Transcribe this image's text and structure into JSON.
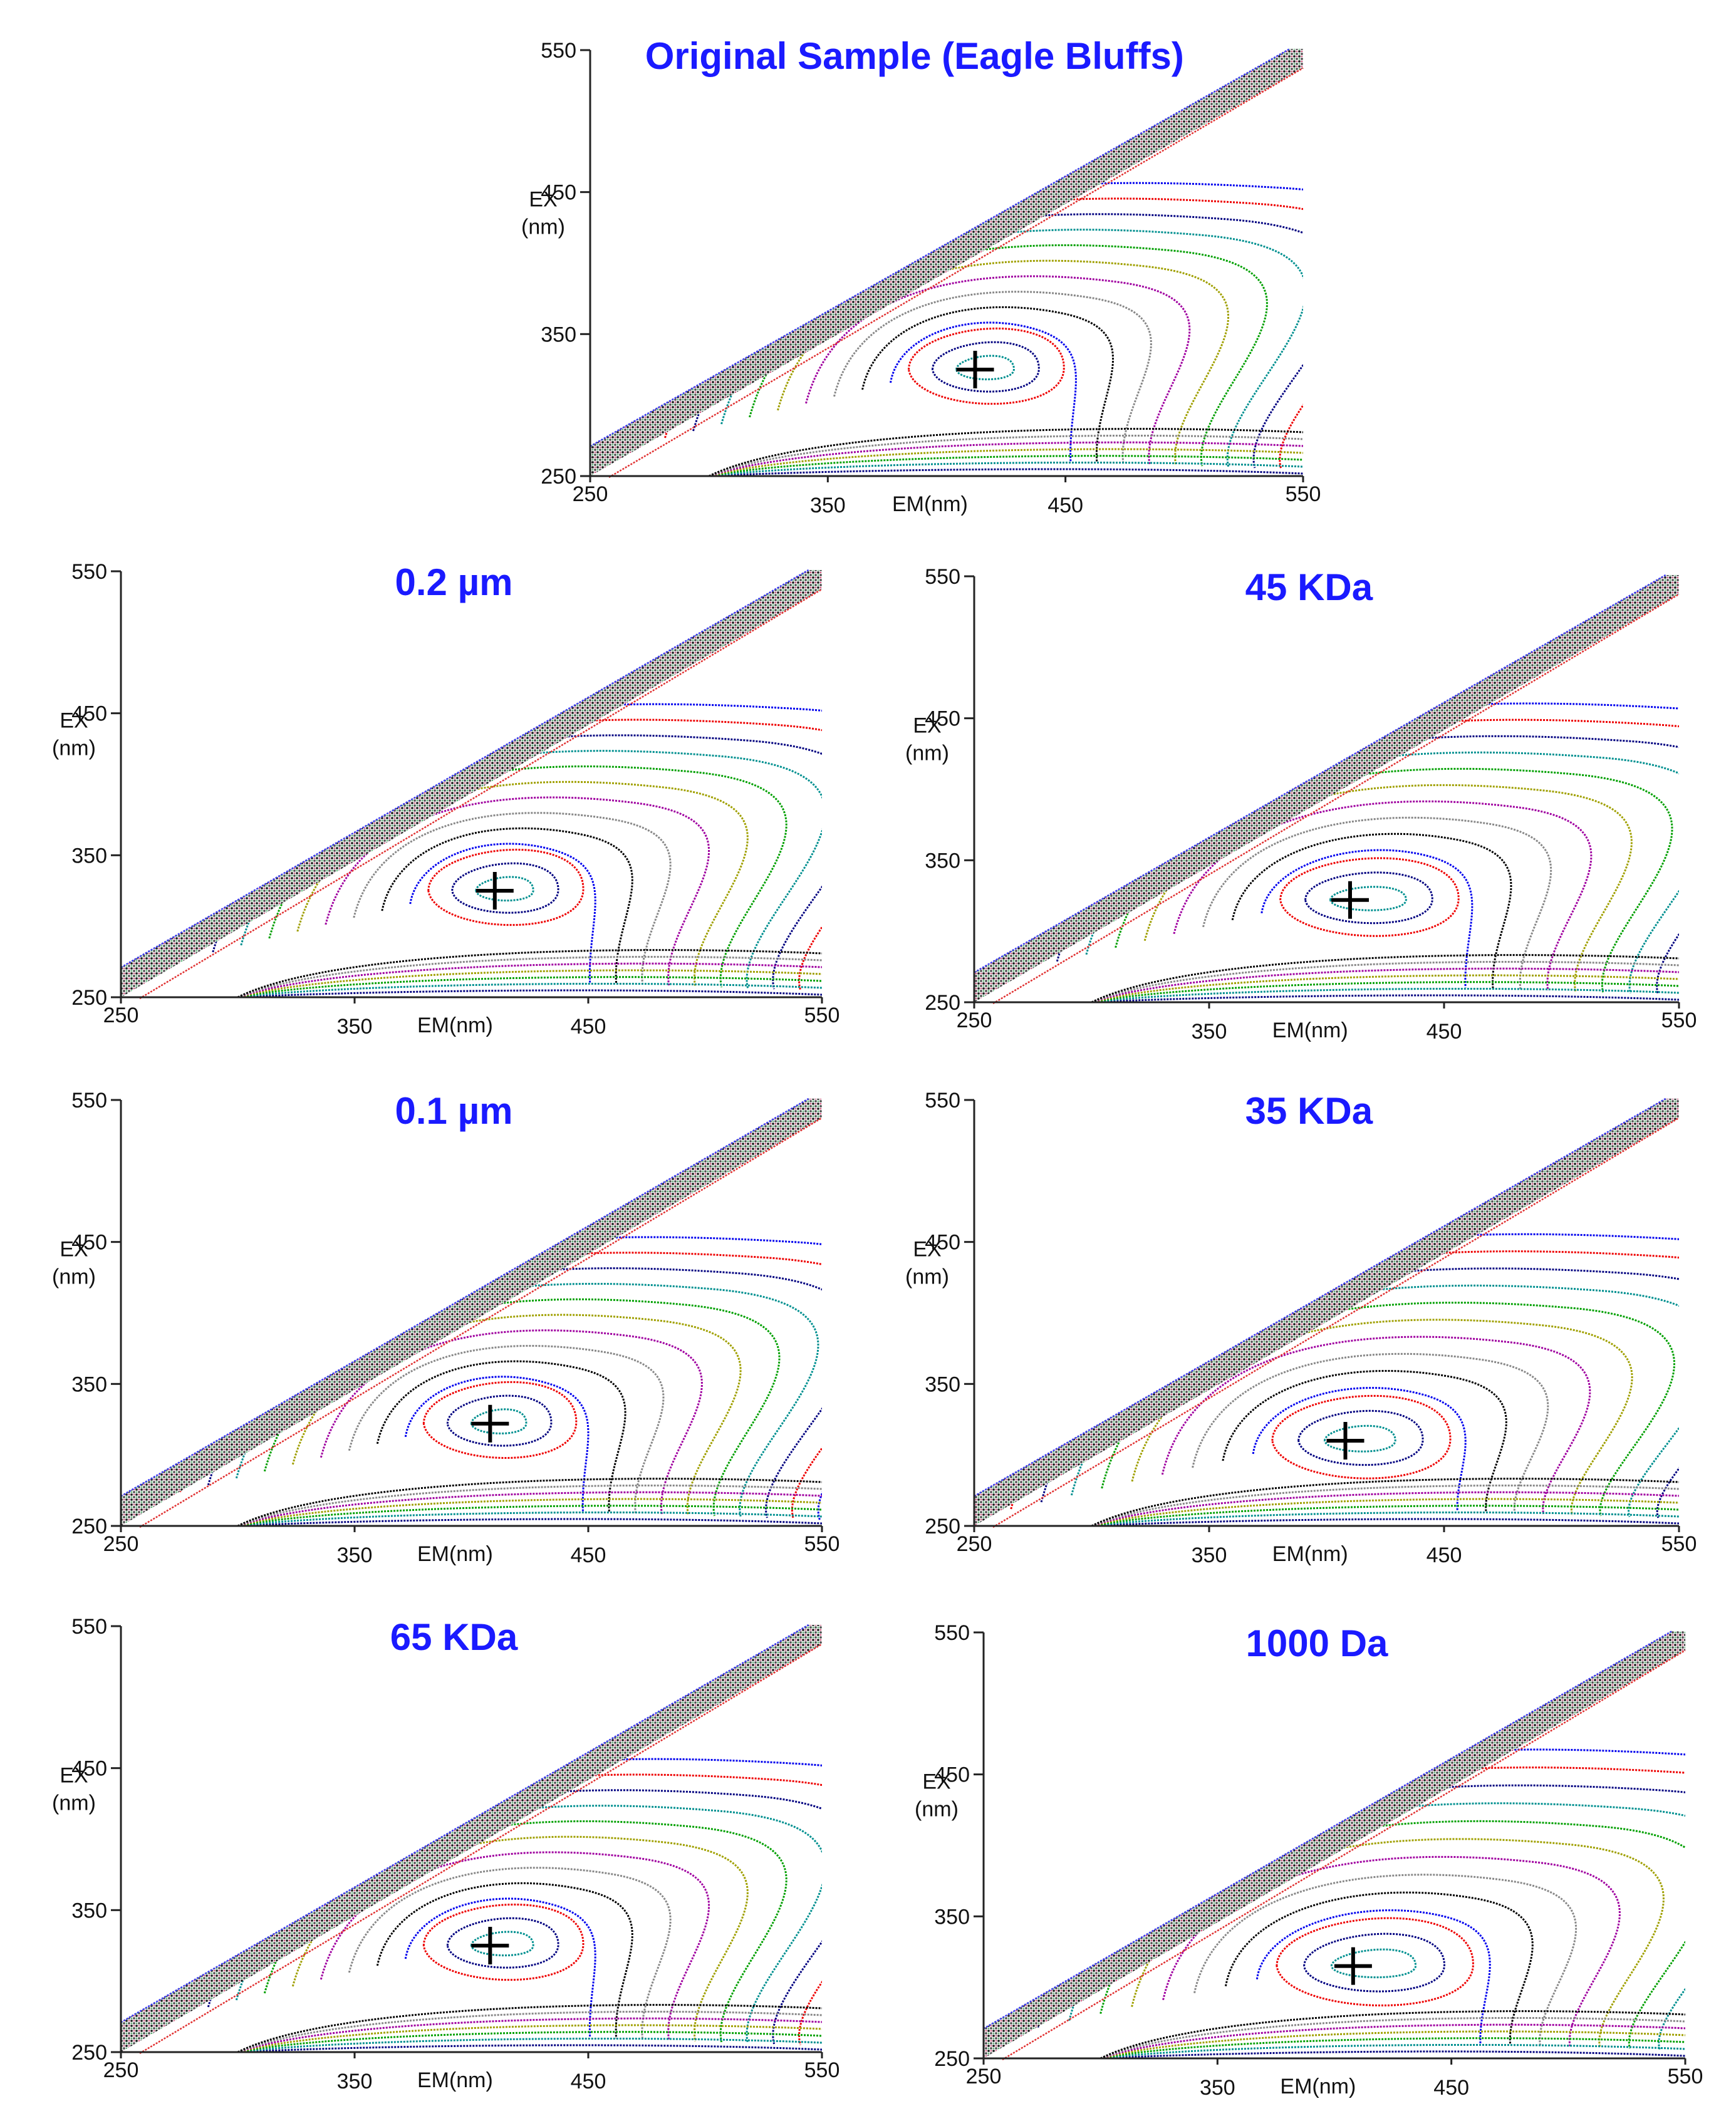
{
  "figure": {
    "title_color": "#1a1aff"
  },
  "chart_data": [
    {
      "type": "contour",
      "title": "Original Sample (Eagle Bluffs)",
      "xlabel": "EM(nm)",
      "ylabel_line1": "EX",
      "ylabel_line2": "(nm)",
      "xlim": [
        250,
        550
      ],
      "ylim": [
        250,
        550
      ],
      "x_ticks": [
        "250",
        "350",
        "450",
        "550"
      ],
      "y_ticks": [
        "250",
        "350",
        "450",
        "550"
      ],
      "peak": {
        "em": 412,
        "ex": 325
      },
      "hump": {
        "em": 420,
        "ex": 330
      },
      "spread": 1.0
    },
    {
      "type": "contour",
      "title": "0.2 µm",
      "xlabel": "EM(nm)",
      "ylabel_line1": "EX",
      "ylabel_line2": "(nm)",
      "xlim": [
        250,
        550
      ],
      "ylim": [
        250,
        550
      ],
      "x_ticks": [
        "250",
        "350",
        "450",
        "550"
      ],
      "y_ticks": [
        "250",
        "350",
        "450",
        "550"
      ],
      "peak": {
        "em": 410,
        "ex": 325
      },
      "hump": {
        "em": 418,
        "ex": 330
      },
      "spread": 1.0
    },
    {
      "type": "contour",
      "title": "45 KDa",
      "xlabel": "EM(nm)",
      "ylabel_line1": "EX",
      "ylabel_line2": "(nm)",
      "xlim": [
        250,
        550
      ],
      "ylim": [
        250,
        550
      ],
      "x_ticks": [
        "250",
        "350",
        "450",
        "550"
      ],
      "y_ticks": [
        "250",
        "350",
        "450",
        "550"
      ],
      "peak": {
        "em": 410,
        "ex": 322
      },
      "hump": {
        "em": 425,
        "ex": 325
      },
      "spread": 1.05
    },
    {
      "type": "contour",
      "title": "0.1 µm",
      "xlabel": "EM(nm)",
      "ylabel_line1": "EX",
      "ylabel_line2": "(nm)",
      "xlim": [
        250,
        550
      ],
      "ylim": [
        250,
        550
      ],
      "x_ticks": [
        "250",
        "350",
        "450",
        "550"
      ],
      "y_ticks": [
        "250",
        "350",
        "450",
        "550"
      ],
      "peak": {
        "em": 408,
        "ex": 322
      },
      "hump": {
        "em": 415,
        "ex": 328
      },
      "spread": 1.0
    },
    {
      "type": "contour",
      "title": "35 KDa",
      "xlabel": "EM(nm)",
      "ylabel_line1": "EX",
      "ylabel_line2": "(nm)",
      "xlim": [
        250,
        550
      ],
      "ylim": [
        250,
        550
      ],
      "x_ticks": [
        "250",
        "350",
        "450",
        "550"
      ],
      "y_ticks": [
        "250",
        "350",
        "450",
        "550"
      ],
      "peak": {
        "em": 408,
        "ex": 310
      },
      "hump": {
        "em": 420,
        "ex": 315
      },
      "spread": 1.1
    },
    {
      "type": "contour",
      "title": "65 KDa",
      "xlabel": "EM(nm)",
      "ylabel_line1": "EX",
      "ylabel_line2": "(nm)",
      "xlim": [
        250,
        550
      ],
      "ylim": [
        250,
        550
      ],
      "x_ticks": [
        "250",
        "350",
        "450",
        "550"
      ],
      "y_ticks": [
        "250",
        "350",
        "450",
        "550"
      ],
      "peak": {
        "em": 408,
        "ex": 325
      },
      "hump": {
        "em": 418,
        "ex": 330
      },
      "spread": 1.0
    },
    {
      "type": "contour",
      "title": "1000 Da",
      "xlabel": "EM(nm)",
      "ylabel_line1": "EX",
      "ylabel_line2": "(nm)",
      "xlim": [
        250,
        550
      ],
      "ylim": [
        250,
        550
      ],
      "x_ticks": [
        "250",
        "350",
        "450",
        "550"
      ],
      "y_ticks": [
        "250",
        "350",
        "450",
        "550"
      ],
      "peak": {
        "em": 408,
        "ex": 315
      },
      "hump": {
        "em": 425,
        "ex": 322
      },
      "spread": 1.15
    }
  ],
  "contour_colors": [
    "#0000ee",
    "#ee0000",
    "#000080",
    "#009090",
    "#00a000",
    "#a0a000",
    "#a000a0",
    "#888888",
    "#000000"
  ]
}
